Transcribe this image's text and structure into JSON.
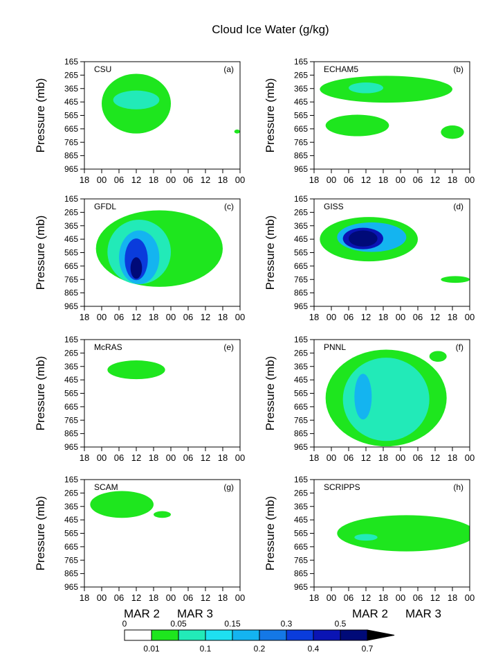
{
  "figure": {
    "title": "Cloud Ice Water (g/kg)",
    "date_labels": [
      "MAR 2",
      "MAR 3"
    ],
    "colors": {
      "level1": "#1ee61e",
      "level2": "#22eab8",
      "level3": "#1ee0f0",
      "level4": "#14b4f0",
      "level5": "#1478e6",
      "level6": "#0a3cdc",
      "level7": "#0a14b4",
      "level8": "#000a78"
    }
  },
  "colorbar": {
    "upper_labels": [
      "0",
      "0.05",
      "0.15",
      "0.3",
      "0.5"
    ],
    "lower_labels": [
      "0.01",
      "0.1",
      "0.2",
      "0.4",
      "0.7"
    ]
  },
  "chart_data": [
    {
      "id": "a",
      "model": "CSU",
      "panel_label": "(a)",
      "type": "heatmap",
      "ylabel": "Pressure (mb)",
      "yticks": [
        "165",
        "265",
        "365",
        "465",
        "565",
        "665",
        "765",
        "865",
        "965"
      ],
      "xticks": [
        "18",
        "00",
        "06",
        "12",
        "18",
        "00",
        "06",
        "12",
        "18",
        "00"
      ],
      "ylim": [
        165,
        965
      ],
      "contours": [
        {
          "level": 1,
          "x_range": [
            6,
            30
          ],
          "p_range": [
            255,
            700
          ],
          "note": "main ice region"
        },
        {
          "level": 2,
          "x_range": [
            10,
            26
          ],
          "p_range": [
            380,
            520
          ]
        },
        {
          "level": 1,
          "x_range": [
            52,
            54
          ],
          "p_range": [
            670,
            700
          ]
        }
      ]
    },
    {
      "id": "b",
      "model": "ECHAM5",
      "panel_label": "(b)",
      "type": "heatmap",
      "ylabel": "Pressure (mb)",
      "yticks": [
        "165",
        "265",
        "365",
        "465",
        "565",
        "665",
        "765",
        "865",
        "965"
      ],
      "xticks": [
        "18",
        "00",
        "06",
        "12",
        "18",
        "00",
        "06",
        "12",
        "18",
        "00"
      ],
      "ylim": [
        165,
        965
      ],
      "contours": [
        {
          "level": 1,
          "x_range": [
            2,
            48
          ],
          "p_range": [
            270,
            470
          ]
        },
        {
          "level": 2,
          "x_range": [
            12,
            24
          ],
          "p_range": [
            320,
            400
          ]
        },
        {
          "level": 1,
          "x_range": [
            4,
            26
          ],
          "p_range": [
            560,
            720
          ]
        },
        {
          "level": 1,
          "x_range": [
            44,
            52
          ],
          "p_range": [
            640,
            740
          ]
        }
      ]
    },
    {
      "id": "c",
      "model": "GFDL",
      "panel_label": "(c)",
      "type": "heatmap",
      "ylabel": "Pressure (mb)",
      "yticks": [
        "165",
        "265",
        "365",
        "465",
        "565",
        "665",
        "765",
        "865",
        "965"
      ],
      "xticks": [
        "18",
        "00",
        "06",
        "12",
        "18",
        "00",
        "06",
        "12",
        "18",
        "00"
      ],
      "ylim": [
        165,
        965
      ],
      "contours": [
        {
          "level": 1,
          "x_range": [
            4,
            48
          ],
          "p_range": [
            250,
            820
          ]
        },
        {
          "level": 2,
          "x_range": [
            8,
            30
          ],
          "p_range": [
            320,
            800
          ]
        },
        {
          "level": 4,
          "x_range": [
            12,
            26
          ],
          "p_range": [
            400,
            800
          ]
        },
        {
          "level": 6,
          "x_range": [
            14,
            22
          ],
          "p_range": [
            460,
            770
          ]
        },
        {
          "level": 8,
          "x_range": [
            16,
            20
          ],
          "p_range": [
            600,
            760
          ]
        }
      ]
    },
    {
      "id": "d",
      "model": "GISS",
      "panel_label": "(d)",
      "type": "heatmap",
      "ylabel": "Pressure (mb)",
      "yticks": [
        "165",
        "265",
        "365",
        "465",
        "565",
        "665",
        "765",
        "865",
        "965"
      ],
      "xticks": [
        "18",
        "00",
        "06",
        "12",
        "18",
        "00",
        "06",
        "12",
        "18",
        "00"
      ],
      "ylim": [
        165,
        965
      ],
      "contours": [
        {
          "level": 1,
          "x_range": [
            2,
            36
          ],
          "p_range": [
            300,
            630
          ]
        },
        {
          "level": 4,
          "x_range": [
            8,
            32
          ],
          "p_range": [
            340,
            560
          ]
        },
        {
          "level": 7,
          "x_range": [
            10,
            24
          ],
          "p_range": [
            380,
            540
          ]
        },
        {
          "level": 8,
          "x_range": [
            12,
            22
          ],
          "p_range": [
            400,
            520
          ]
        },
        {
          "level": 1,
          "x_range": [
            44,
            54
          ],
          "p_range": [
            740,
            790
          ]
        }
      ]
    },
    {
      "id": "e",
      "model": "McRAS",
      "panel_label": "(e)",
      "type": "heatmap",
      "ylabel": "Pressure (mb)",
      "yticks": [
        "165",
        "265",
        "365",
        "465",
        "565",
        "665",
        "765",
        "865",
        "965"
      ],
      "xticks": [
        "18",
        "00",
        "06",
        "12",
        "18",
        "00",
        "06",
        "12",
        "18",
        "00"
      ],
      "ylim": [
        165,
        965
      ],
      "contours": [
        {
          "level": 1,
          "x_range": [
            8,
            28
          ],
          "p_range": [
            320,
            460
          ]
        }
      ]
    },
    {
      "id": "f",
      "model": "PNNL",
      "panel_label": "(f)",
      "type": "heatmap",
      "ylabel": "Pressure (mb)",
      "yticks": [
        "165",
        "265",
        "365",
        "465",
        "565",
        "665",
        "765",
        "865",
        "965"
      ],
      "xticks": [
        "18",
        "00",
        "06",
        "12",
        "18",
        "00",
        "06",
        "12",
        "18",
        "00"
      ],
      "ylim": [
        165,
        965
      ],
      "contours": [
        {
          "level": 1,
          "x_range": [
            4,
            46
          ],
          "p_range": [
            240,
            960
          ]
        },
        {
          "level": 2,
          "x_range": [
            10,
            40
          ],
          "p_range": [
            300,
            920
          ]
        },
        {
          "level": 4,
          "x_range": [
            14,
            20
          ],
          "p_range": [
            420,
            760
          ]
        },
        {
          "level": 1,
          "x_range": [
            40,
            46
          ],
          "p_range": [
            250,
            330
          ]
        }
      ]
    },
    {
      "id": "g",
      "model": "SCAM",
      "panel_label": "(g)",
      "type": "heatmap",
      "ylabel": "Pressure (mb)",
      "yticks": [
        "165",
        "265",
        "365",
        "465",
        "565",
        "665",
        "765",
        "865",
        "965"
      ],
      "xticks": [
        "18",
        "00",
        "06",
        "12",
        "18",
        "00",
        "06",
        "12",
        "18",
        "00"
      ],
      "ylim": [
        165,
        965
      ],
      "contours": [
        {
          "level": 1,
          "x_range": [
            2,
            24
          ],
          "p_range": [
            250,
            450
          ]
        },
        {
          "level": 1,
          "x_range": [
            24,
            30
          ],
          "p_range": [
            400,
            450
          ]
        }
      ]
    },
    {
      "id": "h",
      "model": "SCRIPPS",
      "panel_label": "(h)",
      "type": "heatmap",
      "ylabel": "Pressure (mb)",
      "yticks": [
        "165",
        "265",
        "365",
        "465",
        "565",
        "665",
        "765",
        "865",
        "965"
      ],
      "xticks": [
        "18",
        "00",
        "06",
        "12",
        "18",
        "00",
        "06",
        "12",
        "18",
        "00"
      ],
      "ylim": [
        165,
        965
      ],
      "contours": [
        {
          "level": 1,
          "x_range": [
            8,
            56
          ],
          "p_range": [
            430,
            700
          ]
        },
        {
          "level": 2,
          "x_range": [
            14,
            22
          ],
          "p_range": [
            570,
            620
          ]
        }
      ]
    }
  ]
}
